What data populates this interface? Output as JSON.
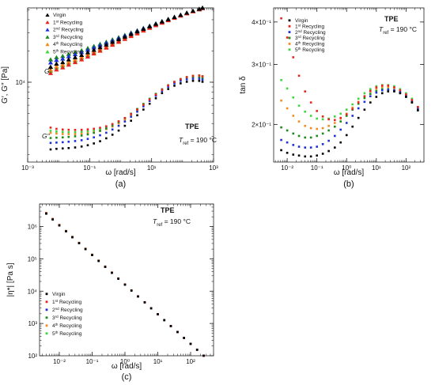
{
  "chart_data": [
    {
      "id": "a",
      "type": "scatter",
      "panel_label": "(a)",
      "xlabel": "ω [rad/s]",
      "ylabel": "G′, G″ [Pa]",
      "xscale": "log",
      "yscale": "log",
      "xlim": [
        0.001,
        1000
      ],
      "ylim": [
        1700,
        52000
      ],
      "xticks": [
        {
          "value": 0.001,
          "label": "10⁻³"
        },
        {
          "value": 0.1,
          "label": "10⁻¹"
        },
        {
          "value": 10,
          "label": "10¹"
        },
        {
          "value": 1000,
          "label": "10³"
        }
      ],
      "yticks": [
        {
          "value": 10000,
          "label": "10⁴"
        }
      ],
      "legend_position": "top-left",
      "annotations": [
        {
          "text": "G′",
          "x": 0.0033,
          "y": 14000
        },
        {
          "text": "G″",
          "x": 0.0025,
          "y": 3550
        },
        {
          "text": "TPE",
          "x": 45,
          "y": 3400,
          "bold": true
        },
        {
          "text": "T",
          "x": 40,
          "y": 2600,
          "sub": "ref",
          "rest": " = 190 °C"
        }
      ],
      "x": [
        0.0055,
        0.0085,
        0.0135,
        0.021,
        0.034,
        0.055,
        0.087,
        0.137,
        0.217,
        0.344,
        0.545,
        0.865,
        1.37,
        2.17,
        3.44,
        5.45,
        8.64,
        13.7,
        21.7,
        34.4,
        54.5,
        86.4,
        137,
        217,
        344,
        440
      ],
      "series": [
        {
          "name": "Virgin",
          "color": "#000000",
          "G_prime": [
            14000,
            15000,
            15500,
            16500,
            17300,
            18200,
            19300,
            20400,
            21600,
            22900,
            24300,
            25800,
            27300,
            29000,
            30700,
            32500,
            34400,
            36300,
            38300,
            40300,
            42300,
            44400,
            46500,
            48600,
            50700,
            52000
          ],
          "G_double_prime": [
            2250,
            2280,
            2300,
            2320,
            2350,
            2400,
            2470,
            2570,
            2700,
            2880,
            3120,
            3420,
            3800,
            4250,
            4800,
            5450,
            6200,
            7000,
            7850,
            8600,
            9250,
            9750,
            10100,
            10300,
            10300,
            10100
          ]
        },
        {
          "name": "1st Recycling",
          "color": "#e8231f",
          "G_prime": [
            12200,
            13200,
            13800,
            14700,
            15500,
            16500,
            17600,
            18800,
            20000,
            21400,
            22800,
            24400,
            26000,
            27700,
            29400,
            31300,
            33200,
            35200,
            37200,
            39300,
            41400,
            43600,
            45800,
            48000,
            50100,
            51500
          ],
          "G_double_prime": [
            3650,
            3550,
            3500,
            3480,
            3470,
            3480,
            3510,
            3560,
            3640,
            3760,
            3950,
            4200,
            4520,
            4930,
            5450,
            6050,
            6800,
            7600,
            8450,
            9300,
            10050,
            10700,
            11200,
            11500,
            11600,
            11400
          ]
        },
        {
          "name": "2nd Recycling",
          "color": "#1d2fd9",
          "G_prime": [
            15400,
            16300,
            16800,
            17700,
            18500,
            19400,
            20400,
            21500,
            22600,
            23800,
            25100,
            26500,
            28000,
            29600,
            31200,
            32900,
            34700,
            36500,
            38400,
            40300,
            42300,
            44300,
            46300,
            48300,
            50300,
            51500
          ],
          "G_double_prime": [
            2600,
            2620,
            2640,
            2670,
            2710,
            2760,
            2840,
            2940,
            3080,
            3260,
            3500,
            3800,
            4180,
            4650,
            5200,
            5850,
            6600,
            7400,
            8250,
            9050,
            9750,
            10300,
            10650,
            10800,
            10800,
            10600
          ]
        },
        {
          "name": "3rd Recycling",
          "color": "#1a8a1a",
          "G_prime": [
            16500,
            17300,
            17800,
            18600,
            19400,
            20200,
            21200,
            22200,
            23300,
            24400,
            25700,
            27000,
            28400,
            30000,
            31500,
            33200,
            34900,
            36700,
            38600,
            40500,
            42400,
            44400,
            46400,
            48400,
            50400,
            51600
          ],
          "G_double_prime": [
            2900,
            2920,
            2940,
            2970,
            3010,
            3060,
            3140,
            3250,
            3400,
            3580,
            3820,
            4120,
            4500,
            4970,
            5520,
            6180,
            6920,
            7720,
            8550,
            9350,
            10050,
            10600,
            10950,
            11100,
            11100,
            10900
          ]
        },
        {
          "name": "4th Recycling",
          "color": "#f58a1f",
          "G_prime": [
            13200,
            14200,
            14800,
            15700,
            16500,
            17500,
            18600,
            19700,
            20900,
            22200,
            23600,
            25100,
            26700,
            28300,
            30000,
            31800,
            33700,
            35600,
            37600,
            39600,
            41700,
            43800,
            45900,
            48000,
            50100,
            51400
          ],
          "G_double_prime": [
            3250,
            3200,
            3170,
            3160,
            3160,
            3180,
            3220,
            3290,
            3390,
            3530,
            3740,
            4010,
            4360,
            4790,
            5320,
            5950,
            6700,
            7500,
            8350,
            9200,
            9950,
            10600,
            11050,
            11350,
            11450,
            11250
          ]
        },
        {
          "name": "5th Recycling",
          "color": "#3dd63d",
          "G_prime": [
            12800,
            13800,
            14400,
            15300,
            16100,
            17100,
            18200,
            19300,
            20500,
            21800,
            23200,
            24700,
            26300,
            27900,
            29700,
            31500,
            33400,
            35400,
            37400,
            39400,
            41500,
            43700,
            45900,
            48100,
            50200,
            51500
          ],
          "G_double_prime": [
            3400,
            3350,
            3320,
            3300,
            3300,
            3320,
            3360,
            3430,
            3530,
            3670,
            3880,
            4150,
            4500,
            4930,
            5460,
            6100,
            6850,
            7650,
            8500,
            9350,
            10100,
            10750,
            11250,
            11550,
            11650,
            11450
          ]
        }
      ]
    },
    {
      "id": "b",
      "type": "scatter",
      "panel_label": "(b)",
      "xlabel": "ω [rad/s]",
      "ylabel": "tan δ",
      "xscale": "log",
      "yscale": "log",
      "xlim": [
        0.0035,
        400
      ],
      "ylim": [
        0.155,
        0.44
      ],
      "xticks": [
        {
          "value": 0.01,
          "label": "10⁻²"
        },
        {
          "value": 0.1,
          "label": "10⁻¹"
        },
        {
          "value": 1,
          "label": "10⁰"
        },
        {
          "value": 10,
          "label": "10¹"
        },
        {
          "value": 100,
          "label": "10²"
        }
      ],
      "yticks": [
        {
          "value": 0.2,
          "label": "2×10⁻¹"
        },
        {
          "value": 0.3,
          "label": "3×10⁻¹"
        },
        {
          "value": 0.4,
          "label": "4×10⁻¹"
        }
      ],
      "legend_position": "top-left",
      "annotations": [
        {
          "text": "TPE",
          "x": 50,
          "y": 0.405,
          "bold": true
        },
        {
          "text": "T",
          "x": 18,
          "y": 0.378,
          "sub": "ref",
          "rest": " = 190 °C"
        }
      ],
      "x": [
        0.0063,
        0.01,
        0.016,
        0.025,
        0.04,
        0.063,
        0.1,
        0.158,
        0.25,
        0.4,
        0.63,
        1.0,
        1.58,
        2.5,
        4.0,
        6.3,
        10,
        15.8,
        25,
        40,
        63,
        100,
        158,
        250
      ],
      "series": [
        {
          "name": "Virgin",
          "color": "#000000",
          "values": [
            0.168,
            0.165,
            0.163,
            0.162,
            0.161,
            0.161,
            0.162,
            0.164,
            0.167,
            0.171,
            0.177,
            0.186,
            0.197,
            0.209,
            0.221,
            0.232,
            0.241,
            0.247,
            0.25,
            0.25,
            0.247,
            0.241,
            0.232,
            0.22
          ]
        },
        {
          "name": "1st Recycling",
          "color": "#e8231f",
          "values": [
            0.41,
            0.36,
            0.315,
            0.278,
            0.25,
            0.232,
            0.219,
            0.211,
            0.207,
            0.206,
            0.209,
            0.214,
            0.222,
            0.232,
            0.242,
            0.251,
            0.257,
            0.26,
            0.26,
            0.257,
            0.252,
            0.245,
            0.236,
            0.225
          ]
        },
        {
          "name": "2nd Recycling",
          "color": "#1d2fd9",
          "values": [
            0.18,
            0.177,
            0.174,
            0.172,
            0.171,
            0.171,
            0.172,
            0.175,
            0.179,
            0.185,
            0.193,
            0.202,
            0.212,
            0.223,
            0.233,
            0.242,
            0.248,
            0.252,
            0.253,
            0.252,
            0.249,
            0.243,
            0.234,
            0.222
          ]
        },
        {
          "name": "3rd Recycling",
          "color": "#1a8a1a",
          "values": [
            0.196,
            0.192,
            0.188,
            0.185,
            0.183,
            0.183,
            0.185,
            0.188,
            0.192,
            0.197,
            0.204,
            0.212,
            0.221,
            0.23,
            0.239,
            0.246,
            0.251,
            0.254,
            0.254,
            0.252,
            0.248,
            0.241,
            0.232,
            0.22
          ]
        },
        {
          "name": "4th Recycling",
          "color": "#f58a1f",
          "values": [
            0.235,
            0.223,
            0.212,
            0.204,
            0.198,
            0.195,
            0.194,
            0.195,
            0.198,
            0.202,
            0.208,
            0.215,
            0.224,
            0.233,
            0.242,
            0.25,
            0.255,
            0.258,
            0.258,
            0.256,
            0.251,
            0.244,
            0.235,
            0.223
          ]
        },
        {
          "name": "5th Recycling",
          "color": "#3dd63d",
          "values": [
            0.27,
            0.255,
            0.24,
            0.227,
            0.218,
            0.212,
            0.208,
            0.207,
            0.208,
            0.211,
            0.215,
            0.221,
            0.229,
            0.238,
            0.247,
            0.254,
            0.259,
            0.261,
            0.261,
            0.259,
            0.254,
            0.247,
            0.238,
            0.225
          ]
        }
      ]
    },
    {
      "id": "c",
      "type": "scatter",
      "panel_label": "(c)",
      "xlabel": "ω [rad/s]",
      "ylabel": "|η*| [Pa s]",
      "xscale": "log",
      "yscale": "log",
      "xlim": [
        0.0025,
        500
      ],
      "ylim": [
        100,
        5000000
      ],
      "xticks": [
        {
          "value": 0.01,
          "label": "10⁻²"
        },
        {
          "value": 0.1,
          "label": "10⁻¹"
        },
        {
          "value": 1,
          "label": "10⁰"
        },
        {
          "value": 10,
          "label": "10¹"
        },
        {
          "value": 100,
          "label": "10²"
        }
      ],
      "yticks": [
        {
          "value": 100,
          "label": "10²"
        },
        {
          "value": 1000,
          "label": "10³"
        },
        {
          "value": 10000,
          "label": "10⁴"
        },
        {
          "value": 100000,
          "label": "10⁵"
        },
        {
          "value": 1000000,
          "label": "10⁶"
        }
      ],
      "legend_position": "bottom-left",
      "annotations": [
        {
          "text": "TPE",
          "x": 55,
          "y": 2500000,
          "bold": true
        },
        {
          "text": "T",
          "x": 34,
          "y": 1450000,
          "sub": "ref",
          "rest": " = 190 °C"
        }
      ],
      "x": [
        0.004,
        0.0063,
        0.01,
        0.016,
        0.025,
        0.04,
        0.063,
        0.1,
        0.158,
        0.25,
        0.4,
        0.63,
        1.0,
        1.58,
        2.5,
        4.0,
        6.3,
        10,
        15.8,
        25,
        40,
        63,
        100,
        158,
        250
      ],
      "series": [
        {
          "name": "Virgin",
          "color": "#000000",
          "values": [
            2500000,
            1650000,
            1080000,
            710000,
            465000,
            305000,
            200000,
            131000,
            86000,
            56500,
            37000,
            24300,
            15900,
            10400,
            6850,
            4500,
            2950,
            1930,
            1270,
            830,
            545,
            357,
            234,
            154,
            101
          ]
        },
        {
          "name": "1st Recycling",
          "color": "#e8231f",
          "values": [
            2600000,
            1700000,
            1110000,
            725000,
            475000,
            311000,
            204000,
            133000,
            87500,
            57300,
            37500,
            24600,
            16100,
            10550,
            6900,
            4520,
            2960,
            1940,
            1270,
            832,
            545,
            357,
            234,
            153,
            100
          ]
        },
        {
          "name": "2nd Recycling",
          "color": "#1d2fd9",
          "values": [
            2550000,
            1670000,
            1090000,
            716000,
            469000,
            307000,
            201000,
            132000,
            86500,
            56700,
            37100,
            24300,
            15900,
            10450,
            6850,
            4490,
            2940,
            1925,
            1260,
            827,
            542,
            355,
            233,
            153,
            100
          ]
        },
        {
          "name": "3rd Recycling",
          "color": "#1a8a1a",
          "values": [
            2580000,
            1690000,
            1100000,
            720000,
            472000,
            309000,
            202000,
            132500,
            86800,
            56900,
            37300,
            24400,
            16000,
            10500,
            6880,
            4510,
            2950,
            1935,
            1268,
            830,
            544,
            356,
            233,
            153,
            100
          ]
        },
        {
          "name": "4th Recycling",
          "color": "#f58a1f",
          "values": [
            2620000,
            1710000,
            1115000,
            728000,
            476000,
            312000,
            204500,
            134000,
            87800,
            57500,
            37600,
            24650,
            16150,
            10580,
            6920,
            4530,
            2970,
            1945,
            1272,
            834,
            546,
            358,
            234,
            153,
            100
          ]
        },
        {
          "name": "5th Recycling",
          "color": "#3dd63d",
          "values": [
            2650000,
            1730000,
            1125000,
            735000,
            480000,
            314000,
            206000,
            135000,
            88300,
            57800,
            37800,
            24750,
            16200,
            10620,
            6950,
            4550,
            2980,
            1950,
            1278,
            836,
            548,
            359,
            235,
            154,
            100
          ]
        }
      ]
    }
  ]
}
